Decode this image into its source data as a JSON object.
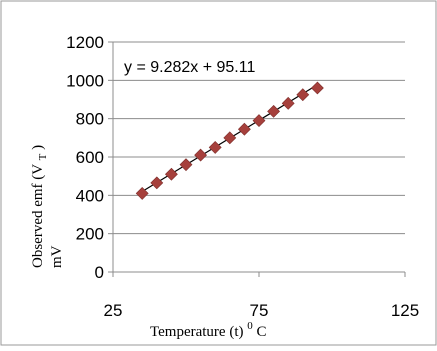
{
  "chart_data": {
    "type": "scatter",
    "title": "",
    "xlabel": "Temperature (t) °C",
    "xlabel_main": "Temperature (t)",
    "xlabel_sup": "0",
    "xlabel_unit": "C",
    "ylabel_line1": "Observed emf (V",
    "ylabel_sub": "T",
    "ylabel_close": ")",
    "ylabel_line2": "mV",
    "xlim": [
      25,
      125
    ],
    "ylim": [
      0,
      1200
    ],
    "x_ticks": [
      25,
      75,
      125
    ],
    "y_ticks": [
      0,
      200,
      400,
      600,
      800,
      1000,
      1200
    ],
    "grid": "horizontal",
    "legend": "none",
    "trendline": {
      "equation": "y = 9.282x + 95.11",
      "slope": 9.282,
      "intercept": 95.11
    },
    "series": [
      {
        "marker_color": "#a6403c",
        "line_color": "#000000",
        "x": [
          35,
          40,
          45,
          50,
          55,
          60,
          65,
          70,
          75,
          80,
          85,
          90,
          95
        ],
        "y": [
          410,
          465,
          510,
          560,
          610,
          650,
          700,
          745,
          790,
          838,
          880,
          925,
          960
        ]
      }
    ]
  }
}
